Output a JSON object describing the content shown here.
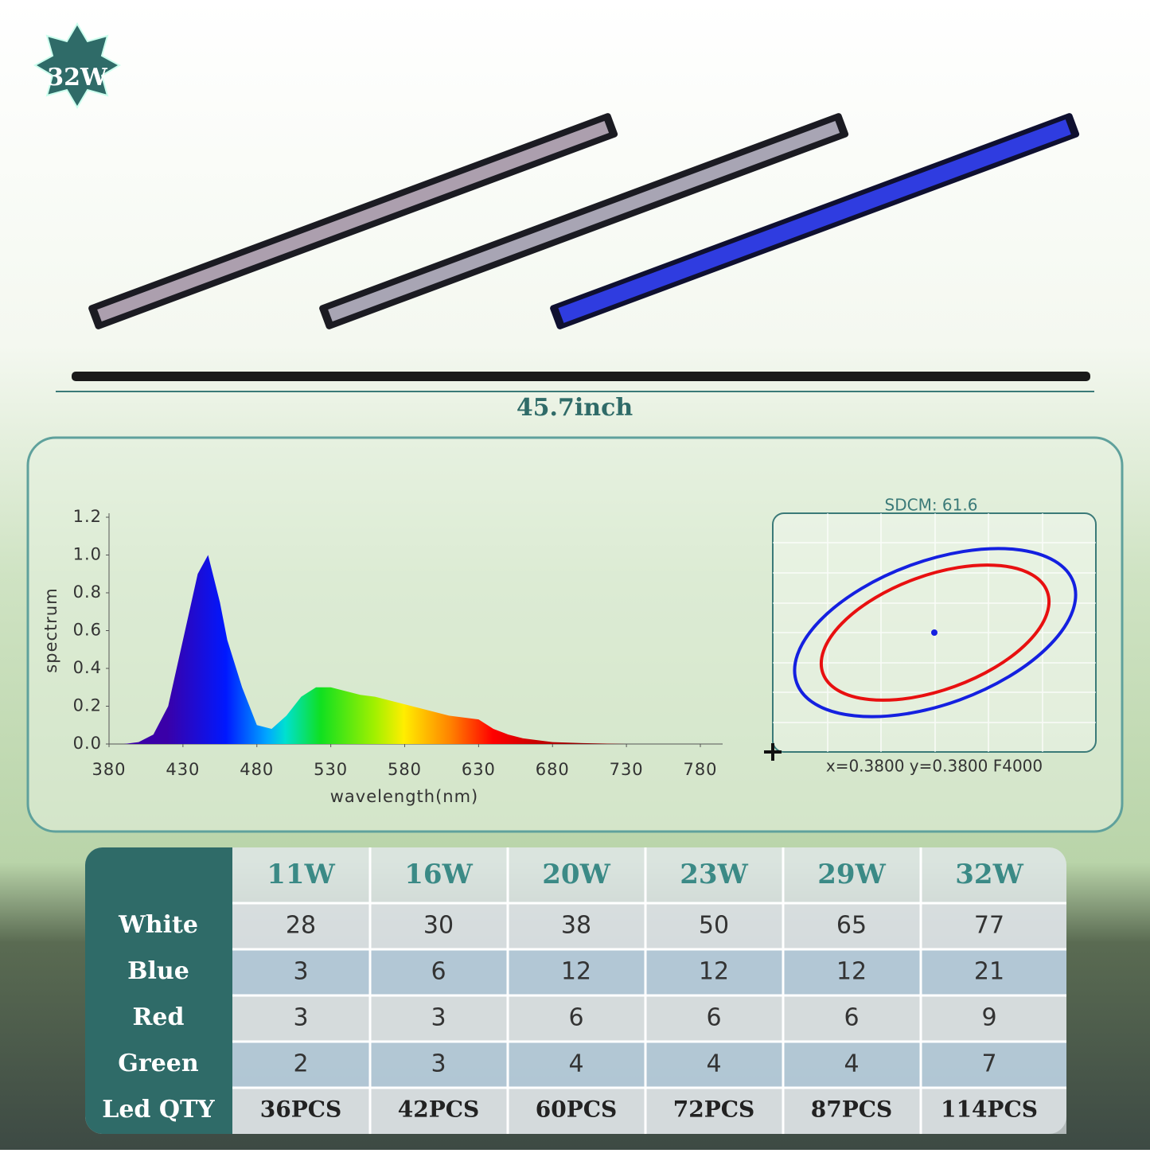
{
  "badge": "32W",
  "dimension": "45.7inch",
  "chart_data": {
    "type": "area",
    "ylabel": "spectrum",
    "xlabel": "wavelength(nm)",
    "x": [
      380,
      390,
      400,
      410,
      420,
      430,
      440,
      447,
      455,
      460,
      470,
      480,
      490,
      500,
      510,
      520,
      530,
      540,
      550,
      560,
      570,
      580,
      590,
      600,
      610,
      620,
      630,
      640,
      650,
      660,
      670,
      680,
      700,
      730,
      780
    ],
    "values": [
      0,
      0,
      0.01,
      0.05,
      0.2,
      0.55,
      0.9,
      1.0,
      0.75,
      0.55,
      0.3,
      0.1,
      0.08,
      0.15,
      0.25,
      0.3,
      0.3,
      0.28,
      0.26,
      0.25,
      0.23,
      0.21,
      0.19,
      0.17,
      0.15,
      0.14,
      0.13,
      0.08,
      0.05,
      0.03,
      0.02,
      0.01,
      0.005,
      0,
      0
    ],
    "xlim": [
      380,
      780
    ],
    "ylim": [
      0,
      1.2
    ],
    "xticks": [
      380,
      430,
      480,
      530,
      580,
      630,
      680,
      730,
      780
    ],
    "yticks": [
      {
        "value": 0,
        "label": "0.0"
      },
      0.2,
      0.4,
      0.6,
      0.8,
      {
        "value": 1,
        "label": "1.0"
      },
      1.2
    ]
  },
  "sdcm": {
    "title": "SDCM:  61.6",
    "coordinates": "x=0.3800 y=0.3800 F4000"
  },
  "table": {
    "header": [
      "11W",
      "16W",
      "20W",
      "23W",
      "29W",
      "32W"
    ],
    "rows": [
      [
        "White",
        "28",
        "30",
        "38",
        "50",
        "65",
        "77"
      ],
      [
        "Blue",
        "3",
        "6",
        "12",
        "12",
        "12",
        "21"
      ],
      [
        "Red",
        "3",
        "3",
        "6",
        "6",
        "6",
        "9"
      ],
      [
        "Green",
        "2",
        "3",
        "4",
        "4",
        "4",
        "7"
      ],
      [
        "Led QTY",
        "36PCS",
        "42PCS",
        "60PCS",
        "72PCS",
        "87PCS",
        "114PCS"
      ]
    ]
  }
}
